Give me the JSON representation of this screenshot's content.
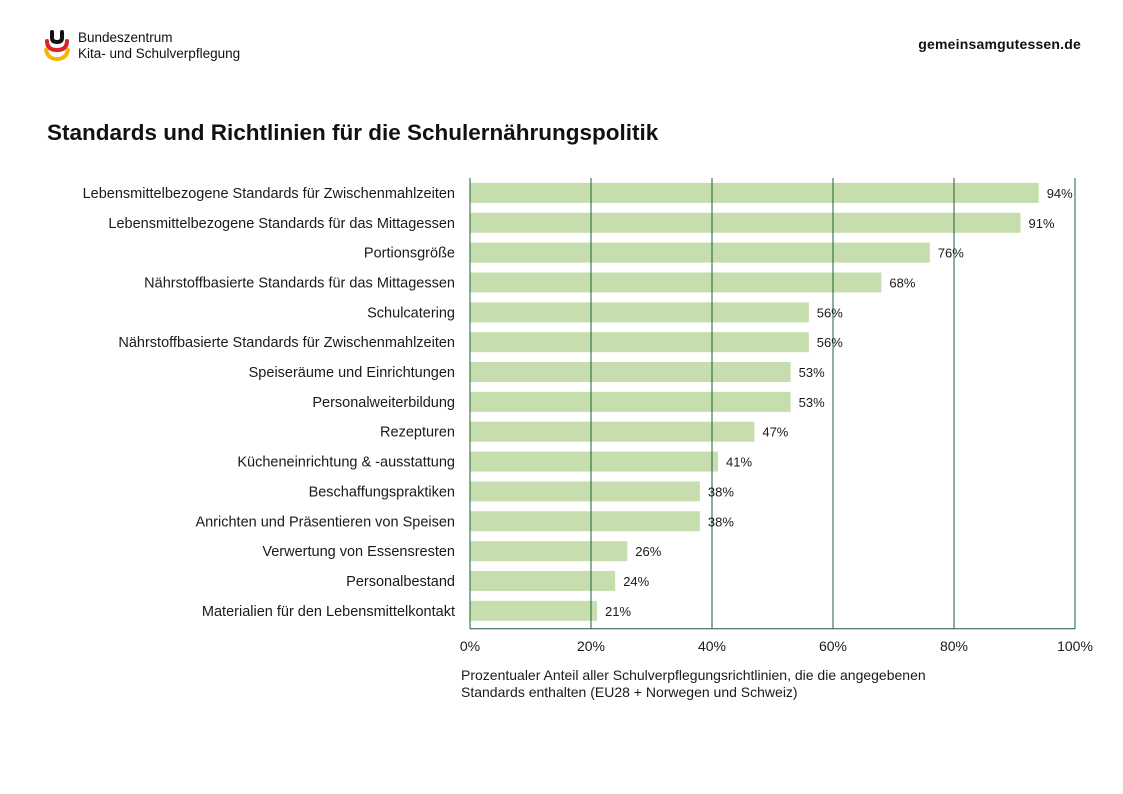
{
  "header": {
    "logo_line1": "Bundeszentrum",
    "logo_line2": "Kita- und Schulverpflegung",
    "site": "gemeinsamgutessen.de"
  },
  "colors": {
    "bar": "#c6deae",
    "grid": "#1f5c3a",
    "logo_red": "#d8232a",
    "logo_gold": "#f2b705",
    "logo_black": "#111111"
  },
  "chart_data": {
    "type": "bar",
    "orientation": "horizontal",
    "title": "Standards und Richtlinien für die Schulernährungspolitik",
    "xlabel_line1": "Prozentualer Anteil aller Schulverpflegungsrichtlinien, die die angegebenen",
    "xlabel_line2": "Standards enthalten (EU28 + Norwegen und Schweiz)",
    "xlim": [
      0,
      100
    ],
    "ticks": [
      "0%",
      "20%",
      "40%",
      "60%",
      "80%",
      "100%"
    ],
    "grid": "vertical",
    "categories": [
      "Lebensmittelbezogene Standards für Zwischenmahlzeiten",
      "Lebensmittelbezogene Standards für das Mittagessen",
      "Portionsgröße",
      "Nährstoffbasierte Standards für das Mittagessen",
      "Schulcatering",
      "Nährstoffbasierte Standards für Zwischenmahlzeiten",
      "Speiseräume und Einrichtungen",
      "Personalweiterbildung",
      "Rezepturen",
      "Kücheneinrichtung & -ausstattung",
      "Beschaffungspraktiken",
      "Anrichten und Präsentieren von Speisen",
      "Verwertung von Essensresten",
      "Personalbestand",
      "Materialien für den Lebensmittelkontakt"
    ],
    "values": [
      94,
      91,
      76,
      68,
      56,
      56,
      53,
      53,
      47,
      41,
      38,
      38,
      26,
      24,
      21
    ],
    "value_labels": [
      "94%",
      "91%",
      "76%",
      "68%",
      "56%",
      "56%",
      "53%",
      "53%",
      "47%",
      "41%",
      "38%",
      "38%",
      "26%",
      "24%",
      "21%"
    ]
  }
}
